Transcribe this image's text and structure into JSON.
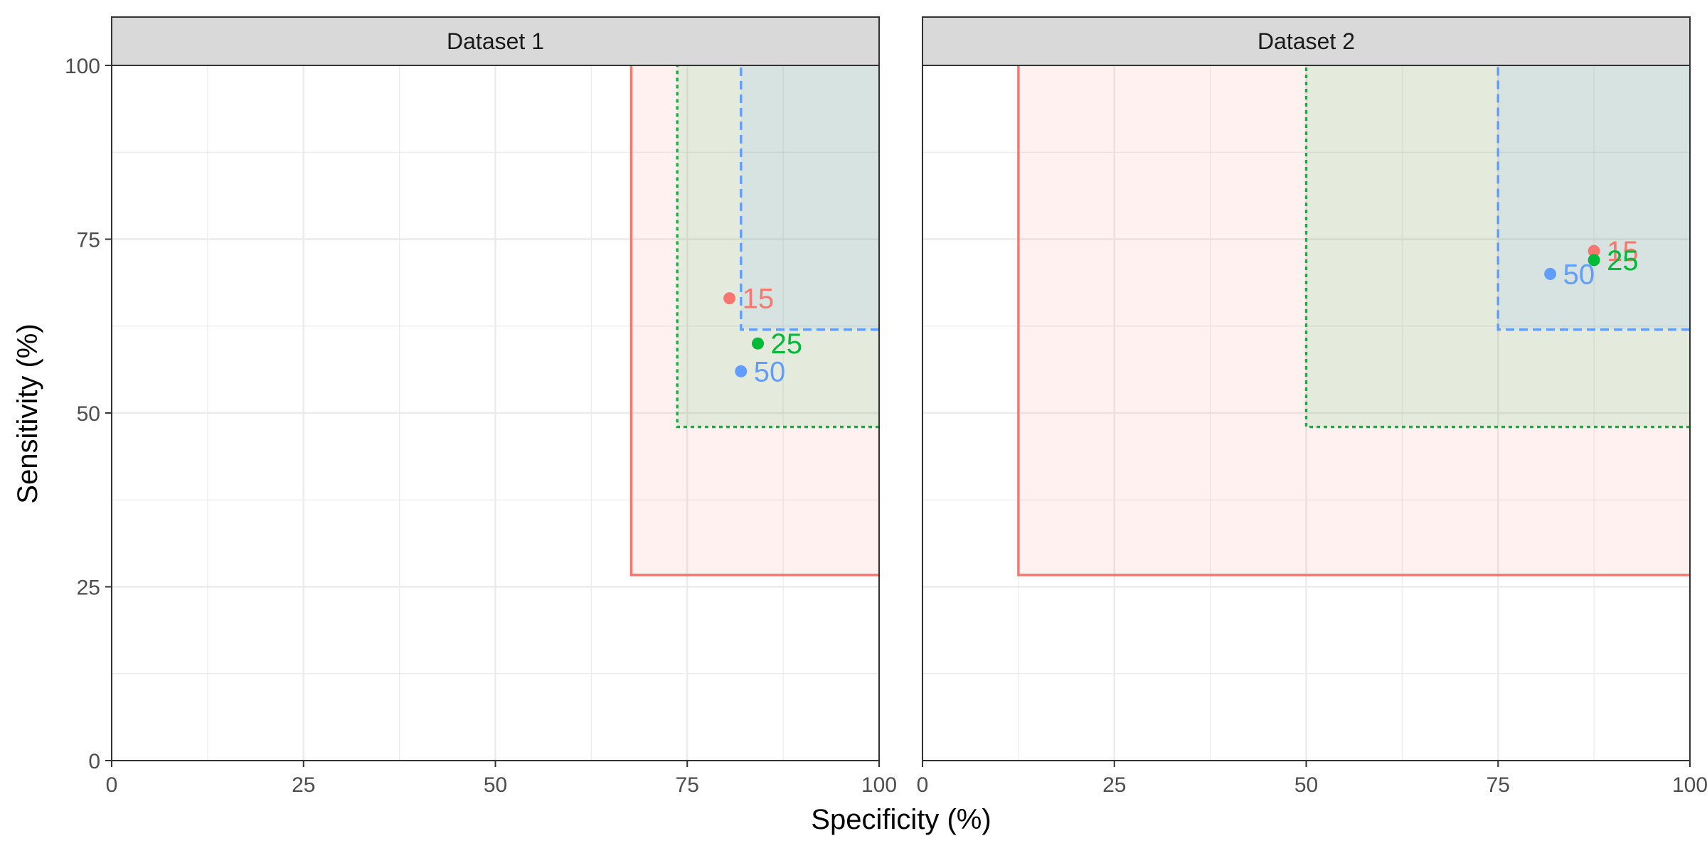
{
  "chart_data": {
    "type": "scatter",
    "xlabel": "Specificity (%)",
    "ylabel": "Sensitivity (%)",
    "xlim": [
      0,
      100
    ],
    "ylim": [
      0,
      100
    ],
    "x_ticks": [
      0,
      25,
      50,
      75,
      100
    ],
    "y_ticks": [
      0,
      25,
      50,
      75,
      100
    ],
    "x_tick_labels": [
      "0",
      "25",
      "50",
      "75",
      "100"
    ],
    "y_tick_labels": [
      "0",
      "25",
      "50",
      "75",
      "100"
    ],
    "grid": true,
    "legend": "none",
    "colors": {
      "15": "#f8766d",
      "25": "#00ba38",
      "50": "#619cff"
    },
    "panels": [
      {
        "title": "Dataset 1",
        "points": [
          {
            "label": "15",
            "x": 80.5,
            "y": 66.5
          },
          {
            "label": "25",
            "x": 84.2,
            "y": 60.0
          },
          {
            "label": "50",
            "x": 82.0,
            "y": 56.0
          }
        ],
        "regions": [
          {
            "label": "15",
            "line": "solid",
            "xmin": 67.7,
            "xmax": 100,
            "ymin": 26.7,
            "ymax": 100
          },
          {
            "label": "25",
            "line": "dotted",
            "xmin": 73.7,
            "xmax": 100,
            "ymin": 48.0,
            "ymax": 100
          },
          {
            "label": "50",
            "line": "dashed",
            "xmin": 82.0,
            "xmax": 100,
            "ymin": 62.0,
            "ymax": 100
          }
        ]
      },
      {
        "title": "Dataset 2",
        "points": [
          {
            "label": "15",
            "x": 87.5,
            "y": 73.3
          },
          {
            "label": "25",
            "x": 87.5,
            "y": 72.0
          },
          {
            "label": "50",
            "x": 81.8,
            "y": 70.0
          }
        ],
        "regions": [
          {
            "label": "15",
            "line": "solid",
            "xmin": 12.5,
            "xmax": 100,
            "ymin": 26.7,
            "ymax": 100
          },
          {
            "label": "25",
            "line": "dotted",
            "xmin": 50.0,
            "xmax": 100,
            "ymin": 48.0,
            "ymax": 100
          },
          {
            "label": "50",
            "line": "dashed",
            "xmin": 75.0,
            "xmax": 100,
            "ymin": 62.0,
            "ymax": 100
          }
        ]
      }
    ]
  }
}
